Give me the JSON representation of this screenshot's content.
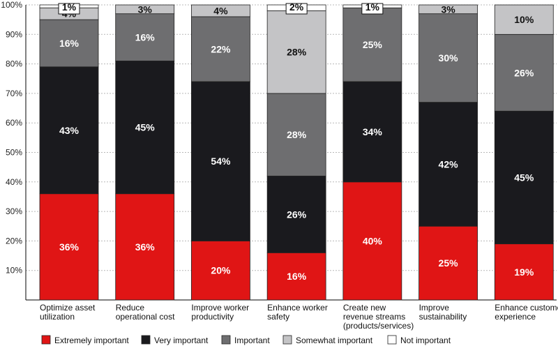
{
  "chart_data": {
    "type": "bar",
    "stacked": true,
    "percent": true,
    "categories": [
      "Optimize asset utilization",
      "Reduce operational cost",
      "Improve worker productivity",
      "Enhance worker safety",
      "Create new revenue streams (products/services)",
      "Improve sustainability",
      "Enhance customer experience"
    ],
    "category_lines": [
      [
        "Optimize asset",
        "utilization"
      ],
      [
        "Reduce",
        "operational cost"
      ],
      [
        "Improve worker",
        "productivity"
      ],
      [
        "Enhance worker",
        "safety"
      ],
      [
        "Create new",
        "revenue streams",
        "(products/services)"
      ],
      [
        "Improve",
        "sustainability"
      ],
      [
        "Enhance customer",
        "experience"
      ]
    ],
    "series": [
      {
        "name": "Extremely important",
        "color": "#e01515",
        "values": [
          36,
          36,
          20,
          16,
          40,
          25,
          19
        ]
      },
      {
        "name": "Very important",
        "color": "#1a1a1e",
        "values": [
          43,
          45,
          54,
          26,
          34,
          42,
          45
        ]
      },
      {
        "name": "Important",
        "color": "#6e6e70",
        "values": [
          16,
          16,
          22,
          28,
          25,
          30,
          26
        ]
      },
      {
        "name": "Somewhat important",
        "color": "#c4c4c6",
        "values": [
          4,
          3,
          4,
          28,
          0,
          3,
          10
        ]
      },
      {
        "name": "Not important",
        "color": "#ffffff",
        "values": [
          1,
          0,
          0,
          2,
          1,
          0,
          0
        ]
      }
    ],
    "yticks": [
      "10%",
      "20%",
      "30%",
      "40%",
      "50%",
      "60%",
      "70%",
      "80%",
      "90%",
      "100%"
    ],
    "ylim": [
      0,
      100
    ],
    "grid": true,
    "legend_position": "bottom"
  }
}
